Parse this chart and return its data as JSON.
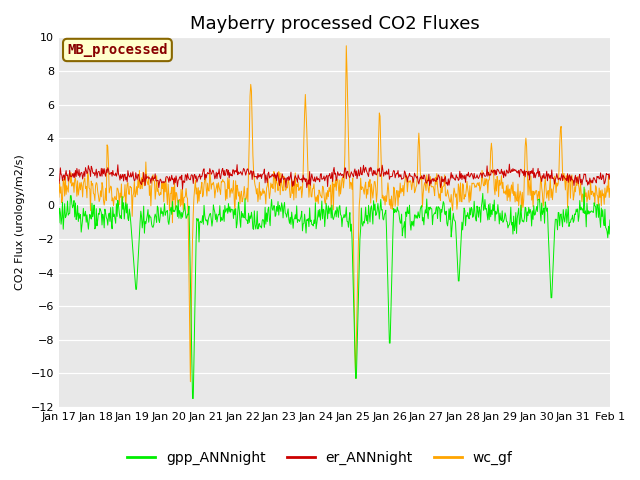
{
  "title": "Mayberry processed CO2 Fluxes",
  "ylabel": "CO2 Flux (urology/m2/s)",
  "ylim": [
    -12,
    10
  ],
  "yticks": [
    -12,
    -10,
    -8,
    -6,
    -4,
    -2,
    0,
    2,
    4,
    6,
    8,
    10
  ],
  "xtick_labels": [
    "Jan 17",
    "Jan 18",
    "Jan 19",
    "Jan 20",
    "Jan 21",
    "Jan 22",
    "Jan 23",
    "Jan 24",
    "Jan 25",
    "Jan 26",
    "Jan 27",
    "Jan 28",
    "Jan 29",
    "Jan 30",
    "Jan 31",
    "Feb 1"
  ],
  "fig_bg": "#ffffff",
  "plot_bg": "#e8e8e8",
  "grid_color": "#f5f5f5",
  "line_colors": {
    "gpp": "#00ee00",
    "er": "#cc0000",
    "wc": "#ffa500"
  },
  "legend_box": {
    "label": "MB_processed",
    "bg": "#ffffcc",
    "edge": "#886600",
    "text_color": "#880000",
    "fontsize": 10
  },
  "series_labels": [
    "gpp_ANNnight",
    "er_ANNnight",
    "wc_gf"
  ],
  "title_fontsize": 13,
  "tick_fontsize": 8,
  "legend_fontsize": 10
}
